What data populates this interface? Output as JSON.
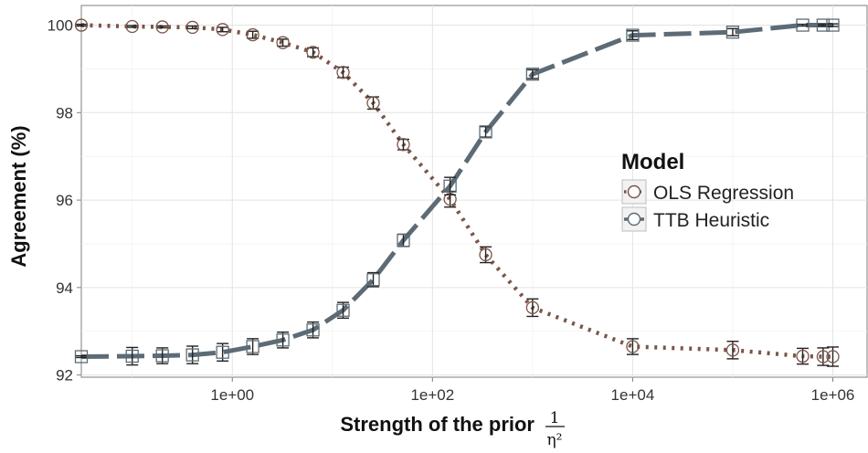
{
  "chart_data": {
    "type": "line",
    "xlabel": "Strength of the prior",
    "xlabel_fraction": {
      "numerator": "1",
      "denominator": "η²"
    },
    "ylabel": "Agreement (%)",
    "x_scale": "log10",
    "xlim": [
      0.031,
      2200000
    ],
    "ylim": [
      91.95,
      100.45
    ],
    "x_ticks": [
      1,
      100,
      10000,
      1000000
    ],
    "x_tick_labels": [
      "1e+00",
      "1e+02",
      "1e+04",
      "1e+06"
    ],
    "y_ticks": [
      92,
      94,
      96,
      98,
      100
    ],
    "y_tick_labels": [
      "92",
      "94",
      "96",
      "98",
      "100"
    ],
    "grid": true,
    "legend": {
      "title": "Model",
      "placement": "right"
    },
    "x": [
      0.031,
      0.1,
      0.2,
      0.4,
      0.8,
      1.6,
      3.2,
      6.4,
      12.8,
      25.6,
      51.2,
      150,
      340,
      1000,
      10000,
      100000,
      500000,
      800000,
      1000000
    ],
    "series": [
      {
        "name": "OLS Regression",
        "color": "#7a5548",
        "line_style": "dotted",
        "marker": "circle",
        "values": [
          100.0,
          99.97,
          99.96,
          99.95,
          99.9,
          99.78,
          99.6,
          99.38,
          98.92,
          98.22,
          97.27,
          96.02,
          94.75,
          93.54,
          92.65,
          92.57,
          92.43,
          92.42,
          92.42
        ],
        "error": [
          0.02,
          0.02,
          0.02,
          0.03,
          0.05,
          0.08,
          0.08,
          0.1,
          0.12,
          0.14,
          0.12,
          0.18,
          0.18,
          0.2,
          0.18,
          0.2,
          0.18,
          0.2,
          0.22
        ]
      },
      {
        "name": "TTB Heuristic",
        "color": "#5c6b76",
        "line_style": "dashed",
        "marker": "square",
        "values": [
          92.42,
          92.43,
          92.44,
          92.46,
          92.52,
          92.65,
          92.8,
          93.03,
          93.48,
          94.18,
          95.08,
          96.32,
          97.56,
          98.88,
          99.77,
          99.84,
          100.0,
          100.0,
          100.0
        ],
        "error": [
          0.02,
          0.2,
          0.18,
          0.2,
          0.2,
          0.18,
          0.18,
          0.18,
          0.18,
          0.16,
          0.14,
          0.2,
          0.12,
          0.1,
          0.1,
          0.08,
          0.02,
          0.02,
          0.03
        ]
      }
    ]
  }
}
